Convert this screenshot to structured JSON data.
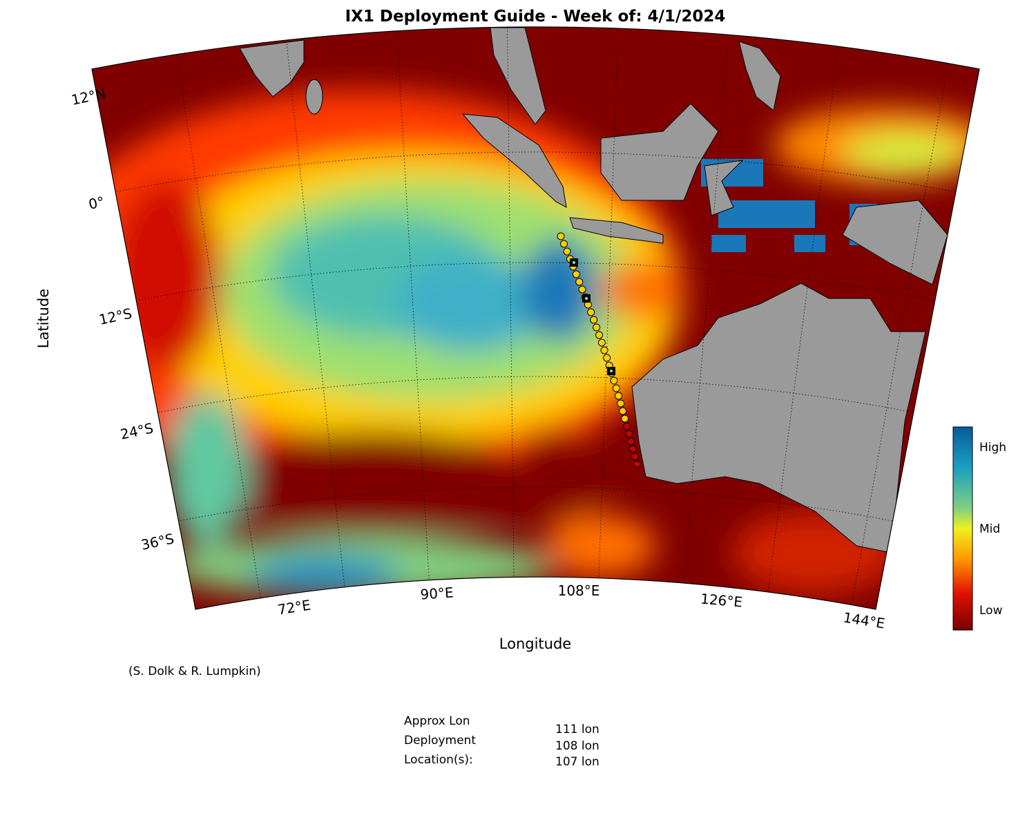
{
  "title": "IX1 Deployment Guide - Week of: 4/1/2024",
  "map": {
    "x_label": "Longitude",
    "y_label": "Latitude",
    "lat_labels": [
      "12°N",
      "0°",
      "12°S",
      "24°S",
      "36°S"
    ],
    "lon_labels": [
      "72°E",
      "90°E",
      "108°E",
      "126°E",
      "144°E"
    ]
  },
  "colorbar": {
    "labels": [
      "High",
      "Mid",
      "Low"
    ]
  },
  "credit": "(S. Dolk & R. Lumpkin)",
  "deployment": {
    "labels": [
      "Approx Lon",
      "Deployment",
      "Location(s):"
    ],
    "locations": [
      "111 lon",
      "108 lon",
      "107 lon"
    ]
  }
}
